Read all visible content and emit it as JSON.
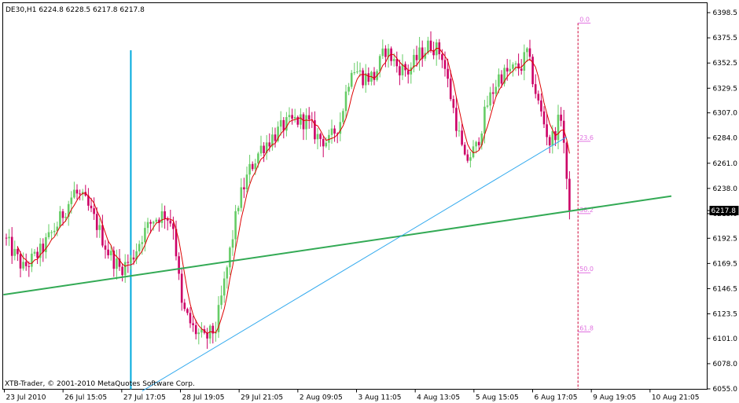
{
  "header": {
    "symbol": "DE30,H1",
    "ohlc": "6224.8 6228.5 6217.8 6217.8"
  },
  "footer": {
    "copyright": "XTB-Trader, © 2001-2010 MetaQuotes Software Corp."
  },
  "colors": {
    "bull": "#66cc66",
    "bear": "#cc0066",
    "ma": "#dd0000",
    "trend_green": "#33aa55",
    "trend_blue": "#33aaee",
    "vline": "#00aadd",
    "fib": "#e070e0",
    "fib_vline": "#cc0033",
    "price_tag_bg": "#000000",
    "price_tag_fg": "#ffffff"
  },
  "chart_data": {
    "type": "candlestick",
    "ylim": [
      6055,
      6400
    ],
    "y_ticks": [
      6398.5,
      6375.5,
      6352.5,
      6329.5,
      6307.0,
      6284.0,
      6261.0,
      6238.0,
      6215.0,
      6192.5,
      6169.5,
      6146.5,
      6123.5,
      6101.0,
      6078.0,
      6055.0
    ],
    "x_labels": [
      "23 Jul 2010",
      "26 Jul 15:05",
      "27 Jul 17:05",
      "28 Jul 19:05",
      "29 Jul 21:05",
      "2 Aug 09:05",
      "3 Aug 11:05",
      "4 Aug 13:05",
      "5 Aug 15:05",
      "6 Aug 17:05",
      "9 Aug 19:05",
      "10 Aug 21:05"
    ],
    "current_price": "6217.8",
    "bar_count": 200,
    "anchors": [
      [
        0,
        6190
      ],
      [
        6,
        6165
      ],
      [
        12,
        6180
      ],
      [
        18,
        6205
      ],
      [
        24,
        6235
      ],
      [
        28,
        6225
      ],
      [
        32,
        6205
      ],
      [
        36,
        6180
      ],
      [
        40,
        6165
      ],
      [
        44,
        6172
      ],
      [
        48,
        6195
      ],
      [
        52,
        6210
      ],
      [
        56,
        6215
      ],
      [
        59,
        6205
      ],
      [
        62,
        6130
      ],
      [
        66,
        6110
      ],
      [
        70,
        6100
      ],
      [
        74,
        6110
      ],
      [
        78,
        6165
      ],
      [
        82,
        6225
      ],
      [
        86,
        6255
      ],
      [
        90,
        6275
      ],
      [
        94,
        6285
      ],
      [
        98,
        6295
      ],
      [
        102,
        6300
      ],
      [
        106,
        6300
      ],
      [
        110,
        6285
      ],
      [
        114,
        6280
      ],
      [
        118,
        6300
      ],
      [
        122,
        6350
      ],
      [
        126,
        6340
      ],
      [
        130,
        6340
      ],
      [
        134,
        6365
      ],
      [
        138,
        6350
      ],
      [
        142,
        6345
      ],
      [
        146,
        6360
      ],
      [
        150,
        6370
      ],
      [
        154,
        6360
      ],
      [
        158,
        6310
      ],
      [
        162,
        6262
      ],
      [
        166,
        6275
      ],
      [
        170,
        6315
      ],
      [
        174,
        6340
      ],
      [
        178,
        6345
      ],
      [
        182,
        6350
      ],
      [
        184,
        6362
      ],
      [
        188,
        6315
      ],
      [
        192,
        6280
      ],
      [
        194,
        6290
      ],
      [
        196,
        6305
      ],
      [
        197,
        6280
      ],
      [
        198,
        6240
      ],
      [
        199,
        6218
      ]
    ],
    "moving_average": {
      "period": 5
    },
    "trendlines": [
      {
        "name": "green",
        "from": [
          -1,
          6141
        ],
        "to": [
          235,
          6231
        ]
      },
      {
        "name": "blue",
        "from": [
          48,
          6053
        ],
        "to": [
          198,
          6285
        ]
      }
    ],
    "vertical_line_bar": 44,
    "fibonacci": {
      "bar": 202,
      "levels": [
        {
          "label": "0.0",
          "price": 6389
        },
        {
          "label": "23.6",
          "price": 6281
        },
        {
          "label": "38.2",
          "price": 6215
        },
        {
          "label": "50.0",
          "price": 6161
        },
        {
          "label": "61.8",
          "price": 6107
        }
      ]
    }
  }
}
